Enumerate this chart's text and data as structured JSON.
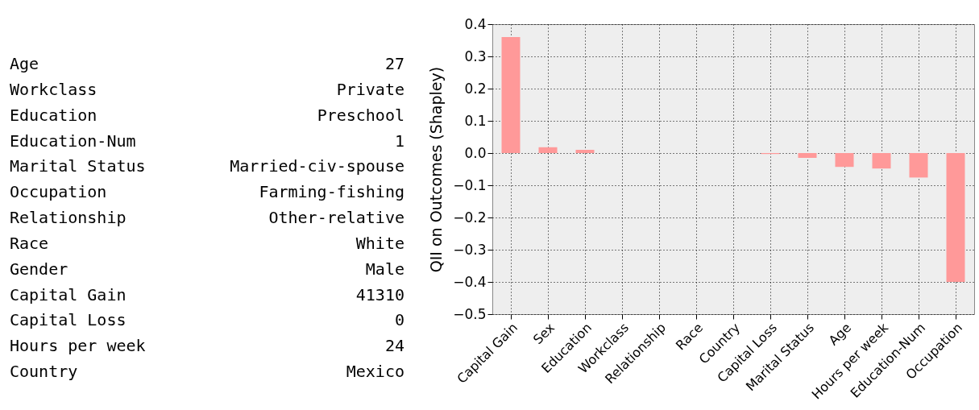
{
  "chart_data": [
    {
      "type": "other",
      "annotations": [
        "Age",
        "27",
        "Workclass",
        "Private",
        "Education",
        "Preschool",
        "Education-Num",
        "1",
        "Marital Status",
        "Married-civ-spouse",
        "Occupation",
        "Farming-fishing",
        "Relationship",
        "Other-relative",
        "Race",
        "White",
        "Gender",
        "Male",
        "Capital Gain",
        "41310",
        "Capital Loss",
        "0",
        "Hours per week",
        "24",
        "Country",
        "Mexico"
      ]
    },
    {
      "type": "bar",
      "ylabel": "QII on Outcomes (Shapley)",
      "categories": [
        "Capital Gain",
        "Sex",
        "Education",
        "Workclass",
        "Relationship",
        "Race",
        "Country",
        "Capital Loss",
        "Marital Status",
        "Age",
        "Hours per week",
        "Education-Num",
        "Occupation"
      ],
      "values": [
        0.36,
        0.018,
        0.01,
        0,
        0,
        0,
        0,
        -0.003,
        -0.015,
        -0.043,
        -0.048,
        -0.076,
        -0.4
      ],
      "color": "#ff9999",
      "ylim": [
        -0.5,
        0.4
      ],
      "yticks": [
        -0.5,
        -0.4,
        -0.3,
        -0.2,
        -0.1,
        {
          "value": 0,
          "label": "0.0"
        },
        0.1,
        0.2,
        0.3,
        0.4
      ],
      "grid": true
    }
  ]
}
